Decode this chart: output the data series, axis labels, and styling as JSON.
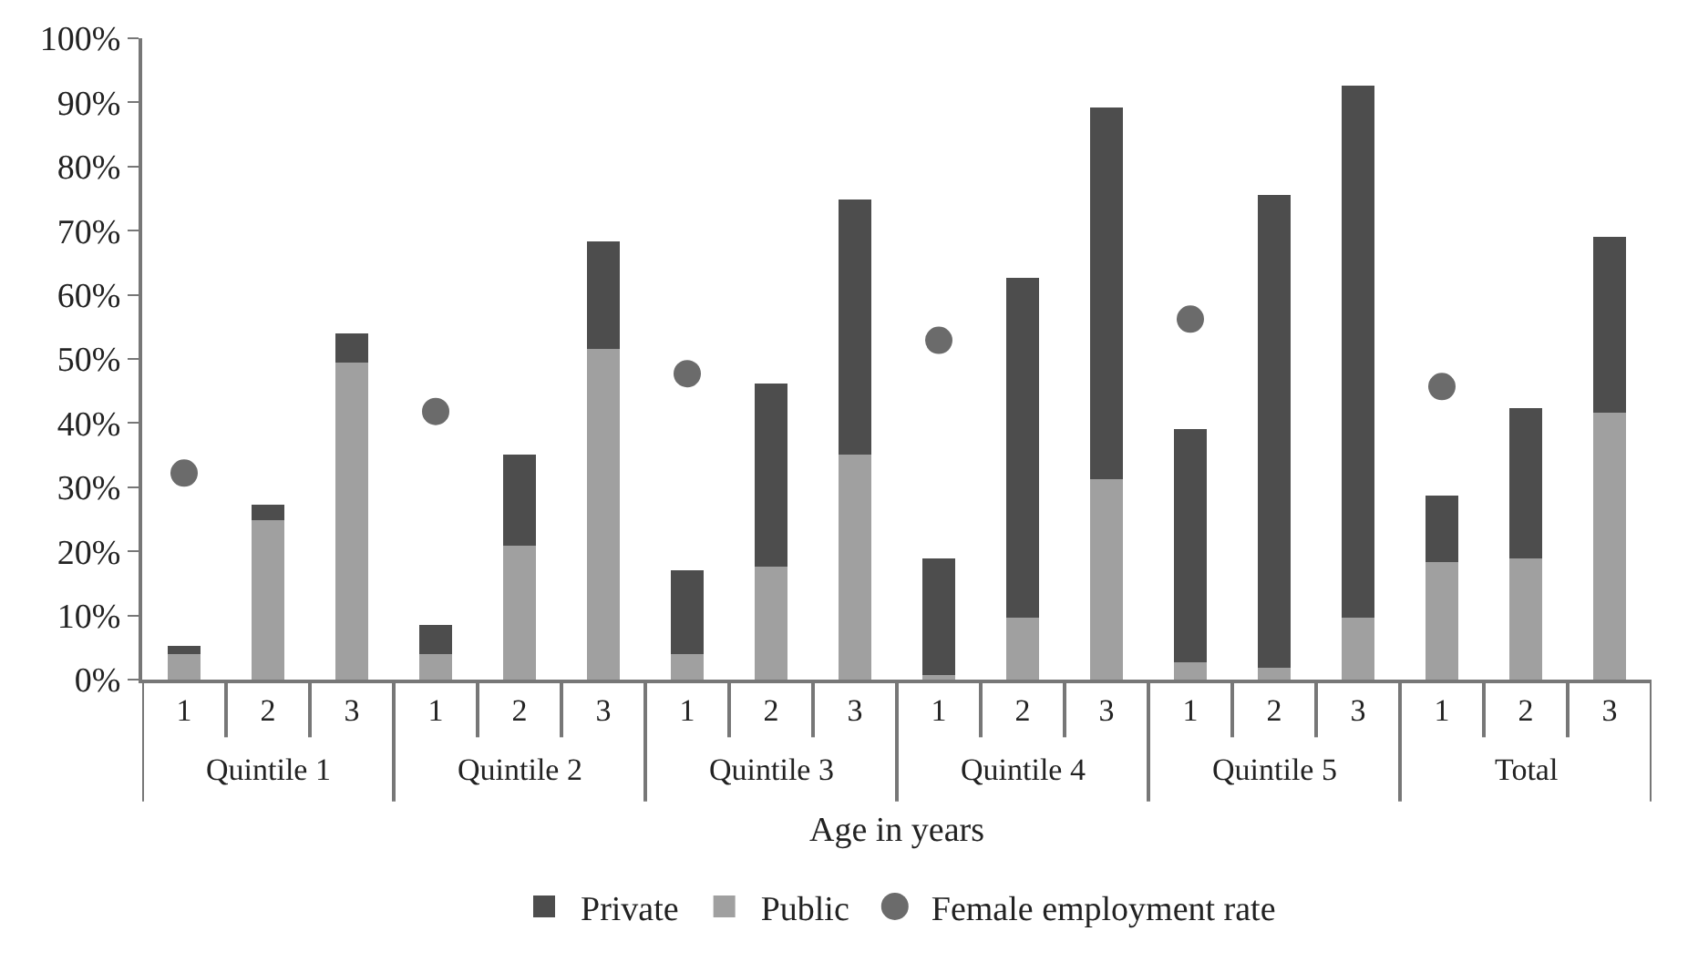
{
  "chart_data": {
    "type": "bar",
    "stacked": true,
    "xlabel": "Age in years",
    "categories": [
      "1",
      "2",
      "3",
      "1",
      "2",
      "3",
      "1",
      "2",
      "3",
      "1",
      "2",
      "3",
      "1",
      "2",
      "3",
      "1",
      "2",
      "3"
    ],
    "annotations": [
      "Quintile 1",
      "Quintile 2",
      "Quintile 3",
      "Quintile 4",
      "Quintile 5",
      "Total"
    ],
    "series": [
      {
        "name": "Public",
        "color": "#a0a0a0",
        "values": [
          4.0,
          24.8,
          49.4,
          4.0,
          20.9,
          51.5,
          4.0,
          17.6,
          35.1,
          0.7,
          9.7,
          31.3,
          2.7,
          1.9,
          9.7,
          18.3,
          18.9,
          41.6
        ]
      },
      {
        "name": "Private",
        "color": "#4d4d4d",
        "values": [
          1.2,
          2.5,
          4.6,
          4.5,
          14.2,
          16.8,
          13.0,
          28.6,
          39.8,
          18.2,
          52.9,
          57.9,
          36.4,
          73.7,
          82.9,
          10.4,
          23.5,
          27.5
        ]
      },
      {
        "name": "Female employment rate",
        "type": "scatter",
        "color": "#6b6b6b",
        "values": [
          32.2,
          null,
          null,
          41.8,
          null,
          null,
          47.7,
          null,
          null,
          52.9,
          null,
          null,
          56.2,
          null,
          null,
          45.7,
          null,
          null
        ]
      }
    ],
    "ylim": [
      0,
      100
    ],
    "yticks": [
      {
        "value": 0,
        "label": "0%"
      },
      {
        "value": 10,
        "label": "10%"
      },
      {
        "value": 20,
        "label": "20%"
      },
      {
        "value": 30,
        "label": "30%"
      },
      {
        "value": 40,
        "label": "40%"
      },
      {
        "value": 50,
        "label": "50%"
      },
      {
        "value": 60,
        "label": "60%"
      },
      {
        "value": 70,
        "label": "70%"
      },
      {
        "value": 80,
        "label": "80%"
      },
      {
        "value": 90,
        "label": "90%"
      },
      {
        "value": 100,
        "label": "100%"
      }
    ],
    "legend": "bottom",
    "marker": "circle"
  }
}
